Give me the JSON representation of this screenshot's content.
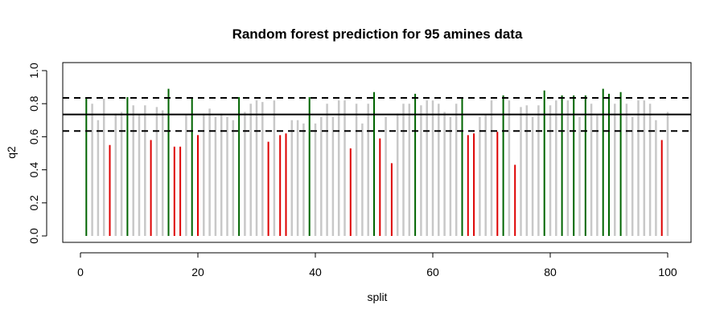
{
  "chart_data": {
    "type": "bar",
    "title": "Random forest prediction for 95 amines data",
    "xlabel": "split",
    "ylabel": "q2",
    "xlim": [
      0,
      100
    ],
    "ylim": [
      0.0,
      1.0
    ],
    "x_ticks": [
      0,
      20,
      40,
      60,
      80,
      100
    ],
    "y_ticks": [
      0.0,
      0.2,
      0.4,
      0.6,
      0.8,
      1.0
    ],
    "x_tick_labels": [
      "0",
      "20",
      "40",
      "60",
      "80",
      "100"
    ],
    "y_tick_labels": [
      "0.0",
      "0.2",
      "0.4",
      "0.6",
      "0.8",
      "1.0"
    ],
    "grid": false,
    "colors": {
      "above": "#006400",
      "below": "#dd0000",
      "within": "#c8c8c8",
      "reference": "#000000"
    },
    "reference_lines": {
      "mean": 0.735,
      "upper": 0.835,
      "lower": 0.635
    },
    "x": [
      1,
      2,
      3,
      4,
      5,
      6,
      7,
      8,
      9,
      10,
      11,
      12,
      13,
      14,
      15,
      16,
      17,
      18,
      19,
      20,
      21,
      22,
      23,
      24,
      25,
      26,
      27,
      28,
      29,
      30,
      31,
      32,
      33,
      34,
      35,
      36,
      37,
      38,
      39,
      40,
      41,
      42,
      43,
      44,
      45,
      46,
      47,
      48,
      49,
      50,
      51,
      52,
      53,
      54,
      55,
      56,
      57,
      58,
      59,
      60,
      61,
      62,
      63,
      64,
      65,
      66,
      67,
      68,
      69,
      70,
      71,
      72,
      73,
      74,
      75,
      76,
      77,
      78,
      79,
      80,
      81,
      82,
      83,
      84,
      85,
      86,
      87,
      88,
      89,
      90,
      91,
      92,
      93,
      94,
      95,
      96,
      97,
      98,
      99,
      100
    ],
    "values": [
      0.84,
      0.8,
      0.7,
      0.83,
      0.55,
      0.74,
      0.75,
      0.84,
      0.79,
      0.73,
      0.79,
      0.58,
      0.78,
      0.76,
      0.89,
      0.54,
      0.54,
      0.73,
      0.84,
      0.61,
      0.74,
      0.77,
      0.72,
      0.74,
      0.72,
      0.7,
      0.84,
      0.75,
      0.8,
      0.82,
      0.81,
      0.57,
      0.82,
      0.61,
      0.62,
      0.7,
      0.7,
      0.68,
      0.84,
      0.68,
      0.72,
      0.8,
      0.72,
      0.82,
      0.82,
      0.53,
      0.8,
      0.68,
      0.8,
      0.87,
      0.59,
      0.72,
      0.44,
      0.74,
      0.8,
      0.8,
      0.86,
      0.79,
      0.82,
      0.82,
      0.8,
      0.75,
      0.72,
      0.8,
      0.84,
      0.61,
      0.62,
      0.72,
      0.73,
      0.82,
      0.63,
      0.85,
      0.82,
      0.43,
      0.78,
      0.79,
      0.72,
      0.79,
      0.88,
      0.79,
      0.82,
      0.85,
      0.82,
      0.85,
      0.72,
      0.85,
      0.8,
      0.73,
      0.89,
      0.86,
      0.8,
      0.87,
      0.8,
      0.72,
      0.82,
      0.82,
      0.8,
      0.7,
      0.58,
      0.75
    ]
  }
}
